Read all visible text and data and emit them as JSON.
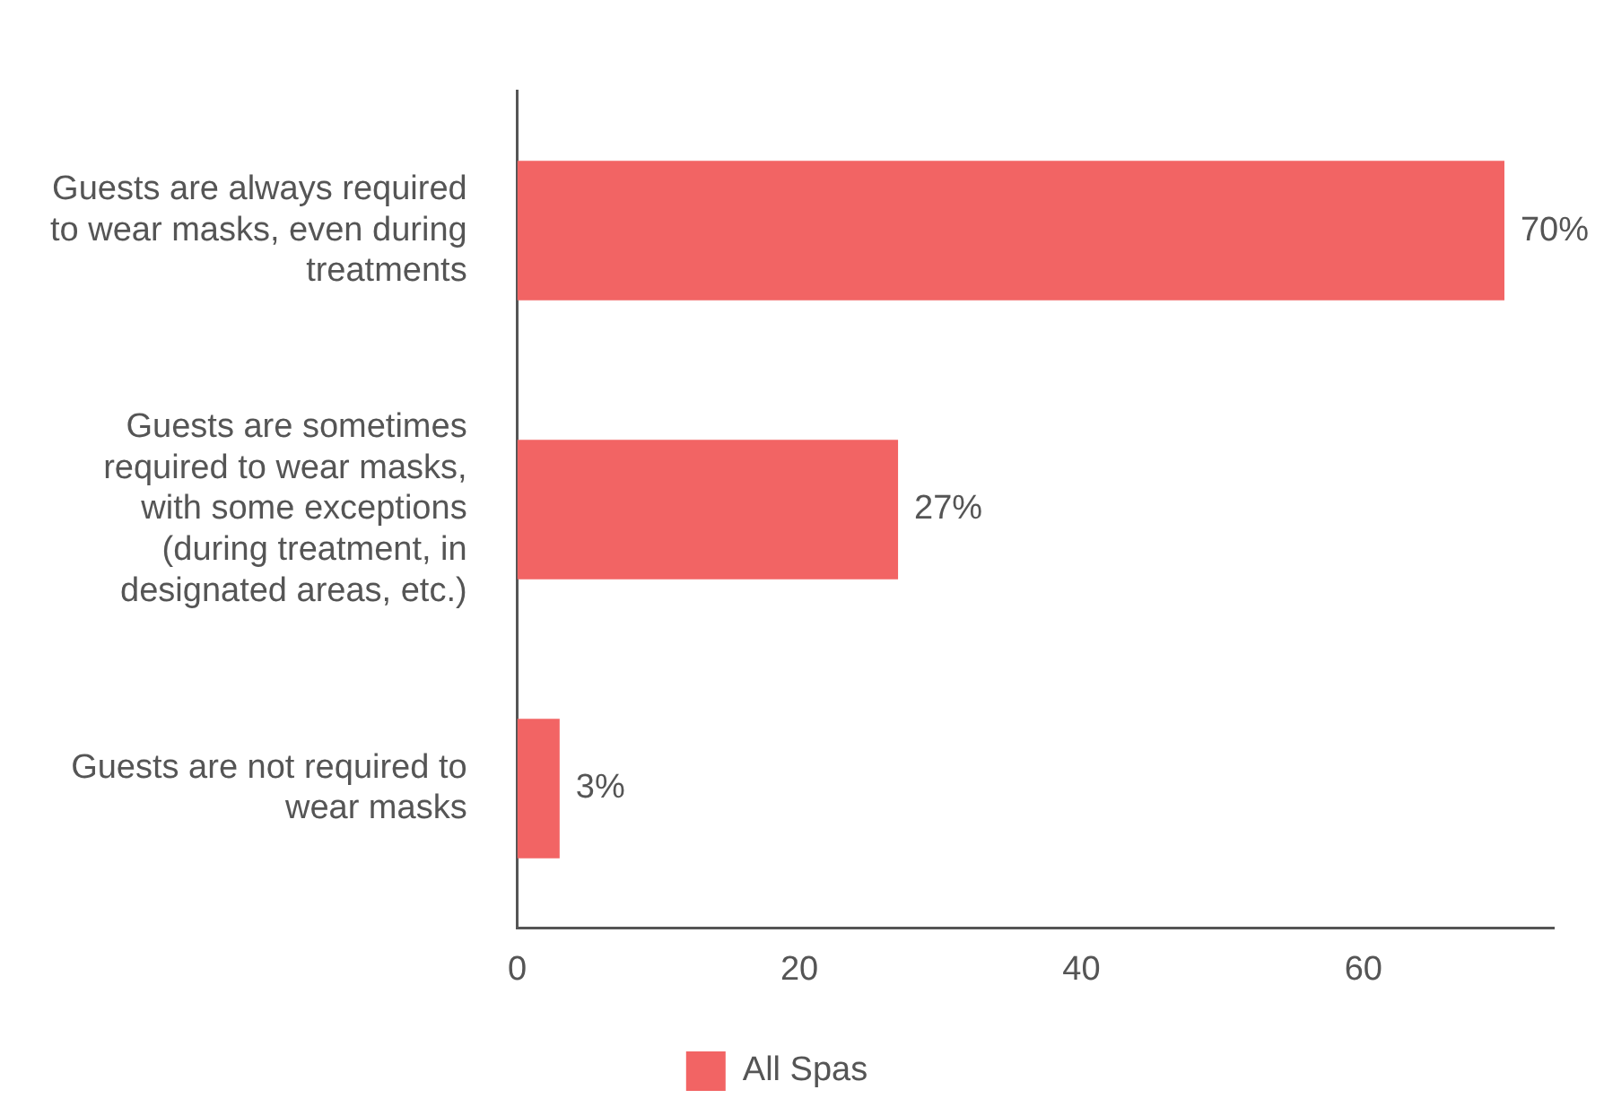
{
  "chart_data": {
    "type": "bar",
    "orientation": "horizontal",
    "categories": [
      "Guests are always required to wear masks, even during treatments",
      "Guests are sometimes required to wear masks, with some exceptions (during treatment, in designated areas, etc.)",
      "Guests are not required to wear masks"
    ],
    "series": [
      {
        "name": "All Spas",
        "color": "#f26464",
        "values": [
          70,
          27,
          3
        ],
        "value_labels": [
          "70%",
          "27%",
          "3%"
        ]
      }
    ],
    "xlim": [
      0,
      73.5
    ],
    "xticks": [
      0,
      20,
      40,
      60
    ],
    "legend": "bottom"
  }
}
